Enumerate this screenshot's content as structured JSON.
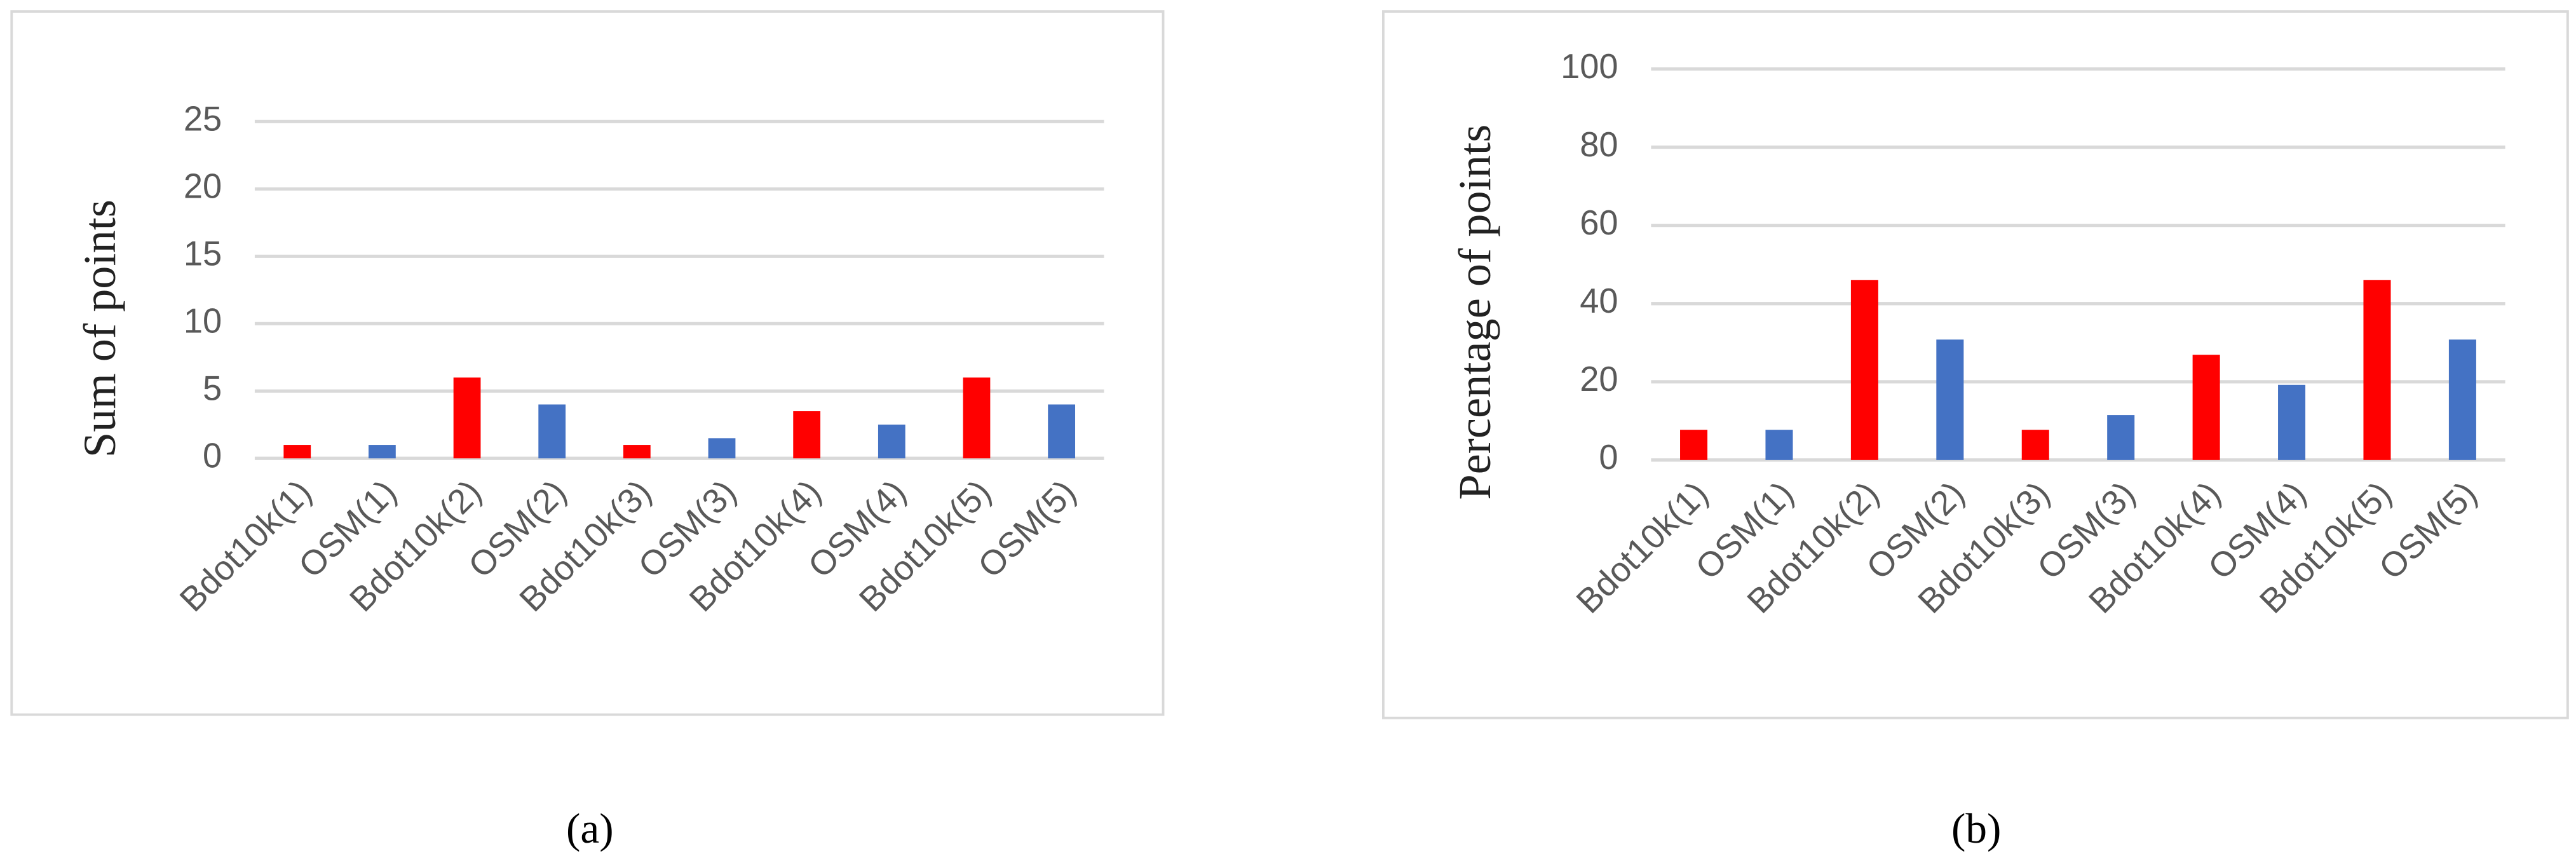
{
  "chart_data": [
    {
      "type": "bar",
      "caption": "(a)",
      "y_label": "Sum of points",
      "categories": [
        "Bdot10k(1)",
        "OSM(1)",
        "Bdot10k(2)",
        "OSM(2)",
        "Bdot10k(3)",
        "OSM(3)",
        "Bdot10k(4)",
        "OSM(4)",
        "Bdot10k(5)",
        "OSM(5)"
      ],
      "values": [
        1,
        1,
        6,
        4,
        1,
        1.5,
        3.5,
        2.5,
        6,
        4
      ],
      "colors": [
        "#ff0000",
        "#4472c4",
        "#ff0000",
        "#4472c4",
        "#ff0000",
        "#4472c4",
        "#ff0000",
        "#4472c4",
        "#ff0000",
        "#4472c4"
      ],
      "ylim": [
        0,
        25
      ],
      "yticks": [
        0,
        5,
        10,
        15,
        20,
        25
      ],
      "grid": true
    },
    {
      "type": "bar",
      "caption": "(b)",
      "y_label": "Percentage of points",
      "categories": [
        "Bdot10k(1)",
        "OSM(1)",
        "Bdot10k(2)",
        "OSM(2)",
        "Bdot10k(3)",
        "OSM(3)",
        "Bdot10k(4)",
        "OSM(4)",
        "Bdot10k(5)",
        "OSM(5)"
      ],
      "values": [
        7.7,
        7.7,
        46,
        30.8,
        7.7,
        11.5,
        26.9,
        19.2,
        46,
        30.8
      ],
      "colors": [
        "#ff0000",
        "#4472c4",
        "#ff0000",
        "#4472c4",
        "#ff0000",
        "#4472c4",
        "#ff0000",
        "#4472c4",
        "#ff0000",
        "#4472c4"
      ],
      "ylim": [
        0,
        100
      ],
      "yticks": [
        0,
        20,
        40,
        60,
        80,
        100
      ],
      "grid": true
    }
  ]
}
